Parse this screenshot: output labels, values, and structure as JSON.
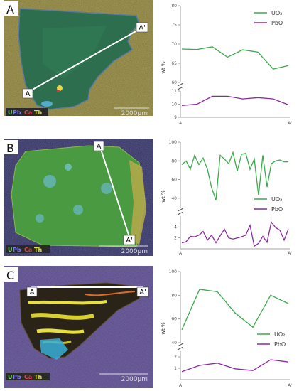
{
  "colors": {
    "uo2": "#3aaa4a",
    "pbo": "#8a2aa0",
    "axis": "#888888"
  },
  "panels": [
    {
      "label": "A",
      "start_label": "A",
      "end_label": "A'",
      "elements": [
        {
          "t": "U",
          "c": "#6fd36f"
        },
        {
          "t": "Pb",
          "c": "#7a7aff"
        },
        {
          "t": "Ca",
          "c": "#e04040"
        },
        {
          "t": "Th",
          "c": "#e0e040"
        }
      ],
      "scale_label": "2000μm"
    },
    {
      "label": "B",
      "start_label": "A",
      "end_label": "A'",
      "elements": [
        {
          "t": "U",
          "c": "#6fd36f"
        },
        {
          "t": "Pb",
          "c": "#7a7aff"
        },
        {
          "t": "Ca",
          "c": "#e04040"
        },
        {
          "t": "Th",
          "c": "#e0e040"
        }
      ],
      "scale_label": "2000μm"
    },
    {
      "label": "C",
      "start_label": "A",
      "end_label": "A'",
      "elements": [
        {
          "t": "U",
          "c": "#6fd36f"
        },
        {
          "t": "Pb",
          "c": "#7a7aff"
        },
        {
          "t": "Ca",
          "c": "#e04040"
        },
        {
          "t": "Th",
          "c": "#e0e040"
        }
      ],
      "scale_label": "2000μm"
    }
  ],
  "chart_data": [
    {
      "type": "line",
      "ylabel": "wt %",
      "x_ticks": [
        "A",
        "A'"
      ],
      "legend_position": "top-right",
      "upper_ylim": [
        60,
        80
      ],
      "upper_ticks": [
        "60",
        "65",
        "70",
        "75",
        "80"
      ],
      "lower_ylim": [
        9,
        11
      ],
      "lower_ticks": [
        "9",
        "10",
        "11"
      ],
      "series": [
        {
          "name": "UO₂",
          "axis": "upper",
          "values": [
            68.7,
            68.6,
            69.3,
            66.6,
            68.5,
            67.9,
            63.5,
            64.4
          ]
        },
        {
          "name": "PbO",
          "axis": "lower",
          "values": [
            9.9,
            10.0,
            10.6,
            10.6,
            10.4,
            10.5,
            10.4,
            9.95
          ]
        }
      ]
    },
    {
      "type": "line",
      "ylabel": "wt %",
      "x_ticks": [
        "A",
        "A'"
      ],
      "legend_position": "middle-right",
      "upper_ylim": [
        30,
        100
      ],
      "upper_ticks": [
        "40",
        "60",
        "80",
        "100"
      ],
      "lower_ylim": [
        0,
        6
      ],
      "lower_ticks": [
        "2",
        "4"
      ],
      "series": [
        {
          "name": "UO₂",
          "axis": "upper",
          "values": [
            76,
            80,
            71,
            86,
            76,
            83,
            71,
            51,
            38,
            86,
            82,
            77,
            89,
            69,
            87,
            88,
            71,
            82,
            43,
            86,
            52,
            77,
            80,
            81,
            79,
            79
          ]
        },
        {
          "name": "PbO",
          "axis": "lower",
          "values": [
            1.1,
            1.3,
            2.3,
            2.2,
            2.5,
            3.2,
            1.6,
            2.5,
            1.1,
            2.4,
            3.6,
            2.0,
            1.8,
            2.0,
            2.2,
            2.5,
            4.3,
            0.5,
            1.0,
            2.3,
            1.2,
            4.9,
            3.9,
            3.4,
            1.6,
            3.6
          ]
        }
      ]
    },
    {
      "type": "line",
      "ylabel": "wt %",
      "x_ticks": [
        "A",
        "A'"
      ],
      "legend_position": "middle-right",
      "upper_ylim": [
        40,
        100
      ],
      "upper_ticks": [
        "40",
        "60",
        "80",
        "100"
      ],
      "lower_ylim": [
        0,
        2.5
      ],
      "lower_ticks": [
        "1",
        "2"
      ],
      "series": [
        {
          "name": "UO₂",
          "axis": "upper",
          "values": [
            51,
            85,
            83,
            65,
            53,
            80,
            73
          ]
        },
        {
          "name": "PbO",
          "axis": "lower",
          "values": [
            0.7,
            1.25,
            1.45,
            0.95,
            0.8,
            1.75,
            1.55
          ]
        }
      ]
    }
  ]
}
